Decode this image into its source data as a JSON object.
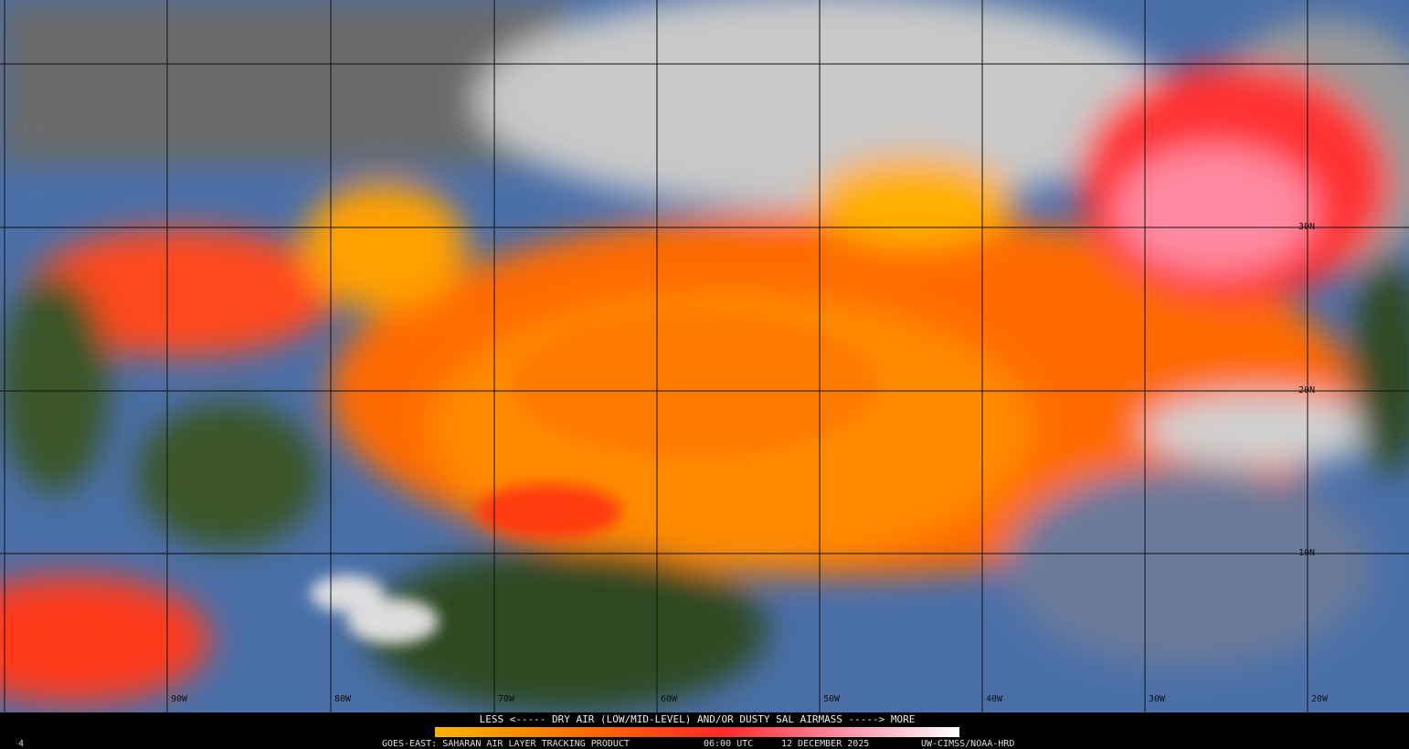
{
  "legend": {
    "label": "LESS <----- DRY AIR (LOW/MID-LEVEL) AND/OR DUSTY SAL AIRMASS -----> MORE"
  },
  "footer": {
    "frame": "4",
    "product": "GOES-EAST: SAHARAN AIR LAYER TRACKING PRODUCT",
    "time": "06:00 UTC",
    "date": "12 DECEMBER 2025",
    "credit": "UW-CIMSS/NOAA-HRD"
  },
  "grid": {
    "longitudes": [
      "90W",
      "80W",
      "70W",
      "60W",
      "50W",
      "40W",
      "30W",
      "20W"
    ],
    "latitudes": [
      "30N",
      "20N",
      "10N"
    ]
  }
}
